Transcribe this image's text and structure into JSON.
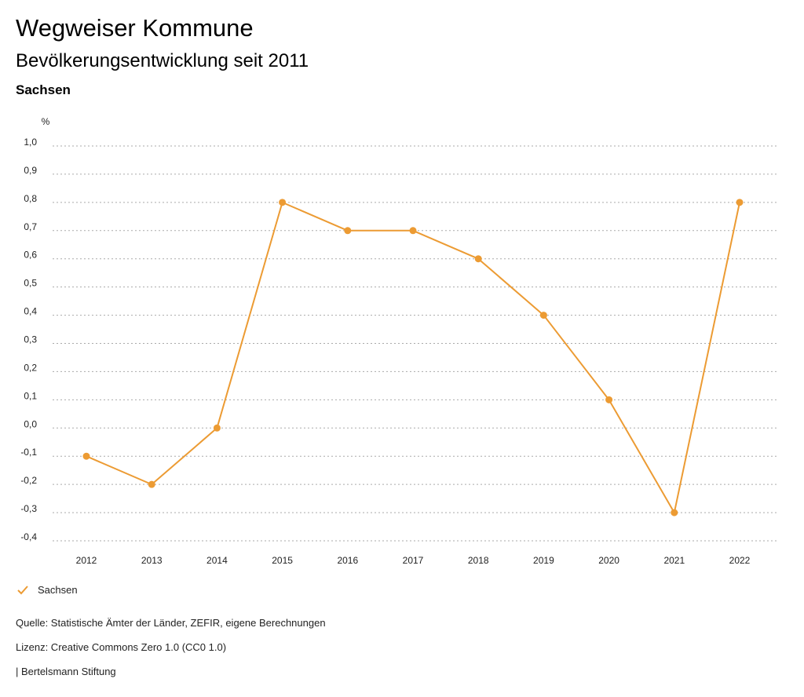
{
  "header": {
    "title": "Wegweiser Kommune",
    "subtitle": "Bevölkerungsentwicklung seit 2011",
    "region": "Sachsen"
  },
  "chart_data": {
    "type": "line",
    "ylabel": "%",
    "x": [
      "2012",
      "2013",
      "2014",
      "2015",
      "2016",
      "2017",
      "2018",
      "2019",
      "2020",
      "2021",
      "2022"
    ],
    "series": [
      {
        "name": "Sachsen",
        "color": "#EC9B33",
        "values": [
          -0.1,
          -0.2,
          0.0,
          0.8,
          0.7,
          0.7,
          0.6,
          0.4,
          0.1,
          -0.3,
          0.8
        ]
      }
    ],
    "ylim": [
      -0.4,
      1.0
    ],
    "yticks": [
      -0.4,
      -0.3,
      -0.2,
      -0.1,
      0.0,
      0.1,
      0.2,
      0.3,
      0.4,
      0.5,
      0.6,
      0.7,
      0.8,
      0.9,
      1.0
    ],
    "ytick_labels": [
      "-0,4",
      "-0,3",
      "-0,2",
      "-0,1",
      "0,0",
      "0,1",
      "0,2",
      "0,3",
      "0,4",
      "0,5",
      "0,6",
      "0,7",
      "0,8",
      "0,9",
      "1,0"
    ],
    "grid": true,
    "legend": "bottom-left"
  },
  "legend": {
    "label": "Sachsen",
    "icon": "check-icon"
  },
  "footer": {
    "source": "Quelle: Statistische Ämter der Länder, ZEFIR, eigene Berechnungen",
    "license": "Lizenz: Creative Commons Zero 1.0 (CC0 1.0)",
    "publisher": "| Bertelsmann Stiftung"
  }
}
